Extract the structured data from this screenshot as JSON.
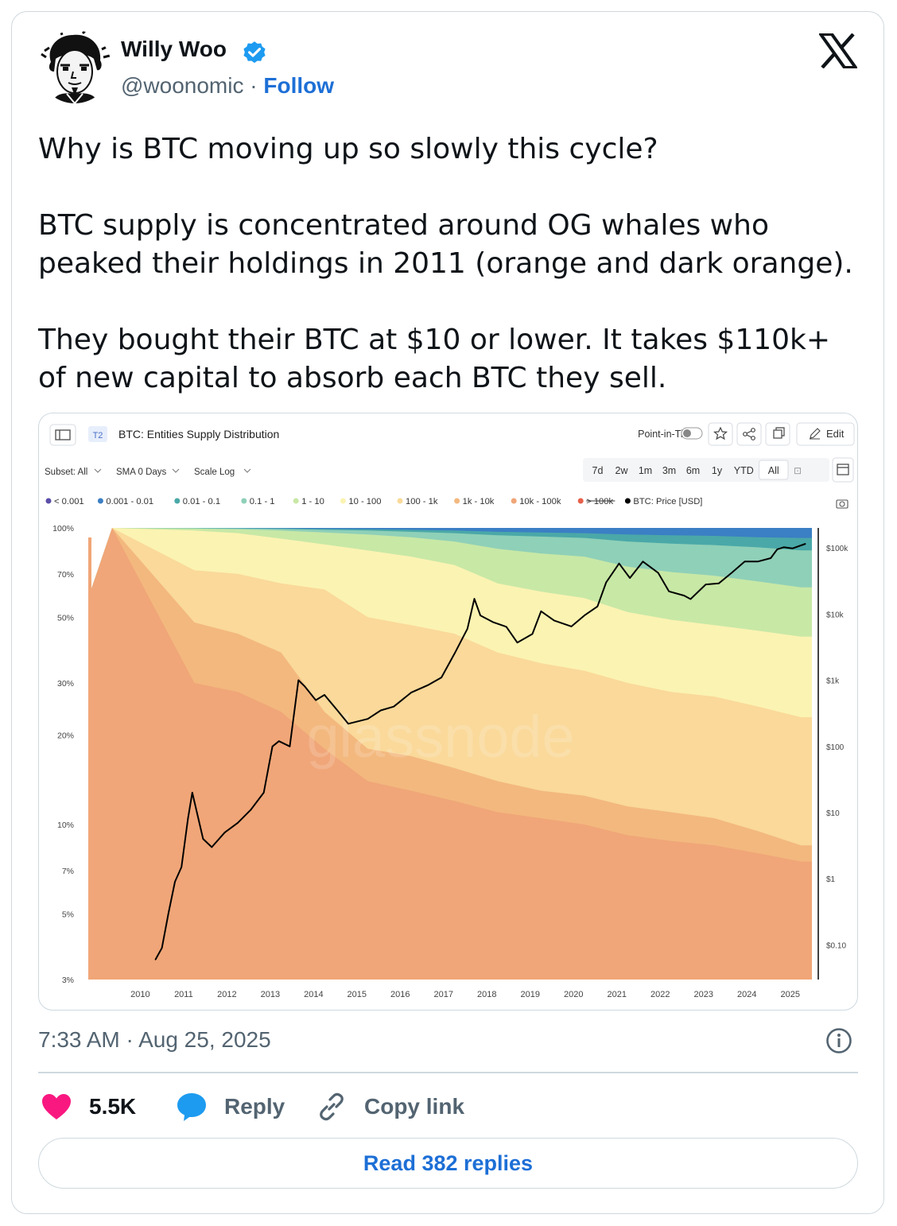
{
  "author": {
    "name": "Willy Woo",
    "handle": "@woonomic",
    "separator": "·",
    "follow_label": "Follow"
  },
  "tweet": {
    "paragraphs": [
      "Why is BTC moving up so slowly this cycle?",
      "BTC supply is concentrated around OG whales who peaked their holdings in 2011 (orange and dark orange).",
      "They bought their BTC at $10 or lower. It takes $110k+ of new capital to absorb each BTC they sell."
    ],
    "timestamp": "7:33 AM · Aug 25, 2025"
  },
  "actions": {
    "likes": "5.5K",
    "reply_label": "Reply",
    "copy_link_label": "Copy link",
    "read_replies_label": "Read 382 replies"
  },
  "colors": {
    "like": "#f91880",
    "reply": "#1d9bf0",
    "link_blue": "#1d6fd6",
    "verified": "#1d9bf0"
  },
  "icons": [
    "verified-badge-icon",
    "x-logo-icon",
    "info-icon",
    "heart-icon",
    "reply-bubble-icon",
    "link-icon"
  ],
  "chart_toolbar": {
    "tier_badge": "T2",
    "title": "BTC: Entities Supply Distribution",
    "point_in_time_label": "Point-in-Time",
    "edit_label": "Edit",
    "subset_label": "Subset: All",
    "sma_label": "SMA 0 Days",
    "scale_label": "Scale Log",
    "ranges": [
      "7d",
      "2w",
      "1m",
      "3m",
      "6m",
      "1y",
      "YTD",
      "All"
    ],
    "selected_range": "All",
    "watermark": "glassnode"
  },
  "chart_data": {
    "type": "area",
    "title": "BTC: Entities Supply Distribution",
    "legend_placement": "top",
    "x": [
      2010,
      2011,
      2012,
      2013,
      2014,
      2015,
      2016,
      2017,
      2018,
      2019,
      2020,
      2021,
      2022,
      2023,
      2024,
      2025
    ],
    "x_tick_labels": [
      "2010",
      "2011",
      "2012",
      "2013",
      "2014",
      "2015",
      "2016",
      "2017",
      "2018",
      "2019",
      "2020",
      "2021",
      "2022",
      "2023",
      "2024",
      "2025"
    ],
    "y_left": {
      "scale": "log",
      "tick_labels": [
        "100%",
        "70%",
        "50%",
        "30%",
        "20%",
        "10%",
        "7%",
        "5%",
        "3%"
      ],
      "ticks": [
        100,
        70,
        50,
        30,
        20,
        10,
        7,
        5,
        3
      ],
      "range": [
        3,
        100
      ]
    },
    "y_right": {
      "scale": "log",
      "tick_labels": [
        "$100k",
        "$10k",
        "$1k",
        "$100",
        "$10",
        "$1",
        "$0.10"
      ],
      "ticks": [
        100000,
        10000,
        1000,
        100,
        10,
        1,
        0.1
      ],
      "range": [
        0.03,
        200000
      ]
    },
    "series": [
      {
        "name": "< 0.001",
        "color": "#5b4ea8",
        "values": [
          100,
          100,
          100,
          100,
          100,
          100,
          100,
          100,
          100,
          100,
          100,
          100,
          100,
          100,
          100,
          100
        ]
      },
      {
        "name": "0.001 - 0.01",
        "color": "#3b7fc4",
        "values": [
          100,
          100,
          100,
          100,
          100,
          100,
          100,
          100,
          100,
          100,
          100,
          100,
          100,
          100,
          100,
          100
        ]
      },
      {
        "name": "0.01 - 0.1",
        "color": "#4aa8a8",
        "values": [
          100,
          100,
          99.8,
          99.6,
          99.2,
          99,
          98.5,
          98,
          97,
          96.5,
          96,
          95,
          94.5,
          94,
          93,
          92.5
        ]
      },
      {
        "name": "0.1 - 1",
        "color": "#8fd0b8",
        "values": [
          100,
          99.8,
          99.6,
          99.2,
          98.5,
          98,
          97,
          96,
          94.5,
          93.5,
          92.5,
          90,
          88.5,
          87.5,
          86,
          84
        ]
      },
      {
        "name": "1 - 10",
        "color": "#c8e8a6",
        "values": [
          100,
          99.5,
          99,
          98,
          96.5,
          95,
          93,
          90,
          85,
          82,
          80,
          74,
          71,
          69,
          66,
          63
        ]
      },
      {
        "name": "10 - 100",
        "color": "#fbf3b2",
        "values": [
          100,
          98,
          96,
          92,
          88,
          84,
          80,
          75,
          65,
          61,
          58,
          52,
          49,
          47,
          45,
          43
        ]
      },
      {
        "name": "100 - 1k",
        "color": "#fad99a",
        "values": [
          100,
          72,
          70,
          65,
          62,
          50,
          47,
          44,
          38,
          35,
          33,
          30,
          28,
          27,
          25,
          23
        ]
      },
      {
        "name": "1k - 10k",
        "color": "#f3b87e",
        "values": [
          100,
          48,
          44,
          38,
          24,
          18,
          17,
          15.5,
          14,
          13,
          12.5,
          11.5,
          11,
          10.5,
          9.5,
          8.5
        ]
      },
      {
        "name": "10k - 100k",
        "color": "#f0a678",
        "values": [
          100,
          30,
          28,
          24,
          18,
          14,
          13,
          12,
          11,
          10.5,
          10,
          9.2,
          8.8,
          8.5,
          8,
          7.5
        ]
      },
      {
        "name": "> 100k",
        "color": "#e8604a",
        "values": [
          100,
          100,
          100,
          100,
          100,
          100,
          100,
          100,
          100,
          100,
          100,
          100,
          100,
          100,
          100,
          100
        ]
      }
    ],
    "price_series": {
      "name": "BTC: Price [USD]",
      "color": "#000000",
      "x": [
        2010.6,
        2010.75,
        2010.9,
        2011.05,
        2011.2,
        2011.35,
        2011.45,
        2011.7,
        2011.9,
        2012.2,
        2012.5,
        2012.8,
        2013.1,
        2013.3,
        2013.45,
        2013.7,
        2013.9,
        2014.05,
        2014.3,
        2014.5,
        2014.8,
        2015.05,
        2015.5,
        2015.8,
        2016.1,
        2016.5,
        2016.9,
        2017.2,
        2017.5,
        2017.8,
        2017.96,
        2018.1,
        2018.4,
        2018.7,
        2018.95,
        2019.3,
        2019.5,
        2019.8,
        2020.2,
        2020.5,
        2020.8,
        2021.0,
        2021.3,
        2021.55,
        2021.85,
        2022.2,
        2022.45,
        2022.8,
        2022.95,
        2023.3,
        2023.6,
        2023.9,
        2024.2,
        2024.5,
        2024.8,
        2024.95,
        2025.1,
        2025.3,
        2025.6
      ],
      "y": [
        0.06,
        0.09,
        0.3,
        0.9,
        1.5,
        8,
        20,
        4,
        3,
        5,
        7,
        11,
        20,
        100,
        120,
        100,
        1000,
        800,
        500,
        600,
        350,
        220,
        260,
        350,
        400,
        650,
        850,
        1100,
        2500,
        6000,
        17000,
        9500,
        7500,
        6400,
        3700,
        5000,
        11000,
        8000,
        6500,
        9500,
        13000,
        30000,
        58000,
        35000,
        62000,
        42000,
        22000,
        19000,
        16800,
        28000,
        29000,
        42000,
        62000,
        62000,
        70000,
        95000,
        102000,
        98000,
        115000
      ]
    }
  }
}
